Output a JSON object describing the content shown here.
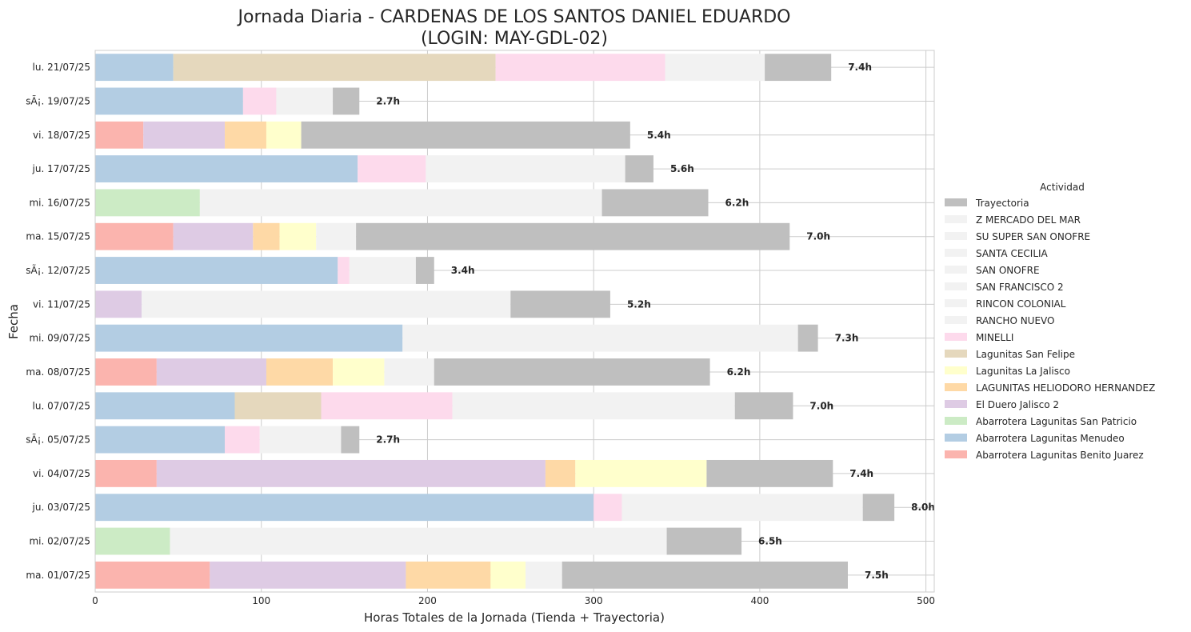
{
  "chart_data": {
    "type": "bar",
    "orientation": "horizontal",
    "stacked": true,
    "title_line1": "Jornada Diaria - CARDENAS DE LOS SANTOS DANIEL EDUARDO",
    "title_line2": "(LOGIN: MAY-GDL-02)",
    "xlabel": "Horas Totales de la Jornada (Tienda + Trayectoria)",
    "ylabel": "Fecha",
    "xlim": [
      0,
      505
    ],
    "xticks": [
      0,
      100,
      200,
      300,
      400,
      500
    ],
    "grid": true,
    "legend_title": "Actividad",
    "legend_placement": "center-right",
    "legend": [
      {
        "name": "Trayectoria",
        "color": "#bfbfbf"
      },
      {
        "name": "Z MERCADO DEL MAR",
        "color": "#f2f2f2"
      },
      {
        "name": "SU SUPER SAN ONOFRE",
        "color": "#f2f2f2"
      },
      {
        "name": "SANTA CECILIA",
        "color": "#f2f2f2"
      },
      {
        "name": "SAN ONOFRE",
        "color": "#f2f2f2"
      },
      {
        "name": "SAN FRANCISCO 2",
        "color": "#f2f2f2"
      },
      {
        "name": "RINCON COLONIAL",
        "color": "#f2f2f2"
      },
      {
        "name": "RANCHO NUEVO",
        "color": "#f2f2f2"
      },
      {
        "name": "MINELLI",
        "color": "#fddaec"
      },
      {
        "name": "Lagunitas San Felipe",
        "color": "#e5d8bd"
      },
      {
        "name": "Lagunitas La Jalisco",
        "color": "#ffffcc"
      },
      {
        "name": "LAGUNITAS HELIODORO HERNANDEZ",
        "color": "#fed9a6"
      },
      {
        "name": "El Duero Jalisco 2",
        "color": "#decbe4"
      },
      {
        "name": "Abarrotera Lagunitas San Patricio",
        "color": "#ccebc5"
      },
      {
        "name": "Abarrotera Lagunitas Menudeo",
        "color": "#b3cde3"
      },
      {
        "name": "Abarrotera Lagunitas Benito Juarez",
        "color": "#fbb4ae"
      }
    ],
    "rows": [
      {
        "label": "lu. 21/07/25",
        "total": "7.4h",
        "segments": [
          {
            "s": "Abarrotera Lagunitas Menudeo",
            "v": 47
          },
          {
            "s": "Lagunitas San Felipe",
            "v": 194
          },
          {
            "s": "MINELLI",
            "v": 102
          },
          {
            "s": "RANCHO NUEVO",
            "v": 60
          },
          {
            "s": "Trayectoria",
            "v": 40
          }
        ]
      },
      {
        "label": "sÃ¡. 19/07/25",
        "total": "2.7h",
        "segments": [
          {
            "s": "Abarrotera Lagunitas Menudeo",
            "v": 89
          },
          {
            "s": "MINELLI",
            "v": 20
          },
          {
            "s": "SAN ONOFRE",
            "v": 34
          },
          {
            "s": "Trayectoria",
            "v": 16
          }
        ]
      },
      {
        "label": "vi. 18/07/25",
        "total": "5.4h",
        "segments": [
          {
            "s": "Abarrotera Lagunitas Benito Juarez",
            "v": 29
          },
          {
            "s": "El Duero Jalisco 2",
            "v": 49
          },
          {
            "s": "LAGUNITAS HELIODORO HERNANDEZ",
            "v": 25
          },
          {
            "s": "Lagunitas La Jalisco",
            "v": 21
          },
          {
            "s": "Trayectoria",
            "v": 198
          }
        ]
      },
      {
        "label": "ju. 17/07/25",
        "total": "5.6h",
        "segments": [
          {
            "s": "Abarrotera Lagunitas Menudeo",
            "v": 158
          },
          {
            "s": "MINELLI",
            "v": 41
          },
          {
            "s": "SANTA CECILIA",
            "v": 120
          },
          {
            "s": "Trayectoria",
            "v": 17
          }
        ]
      },
      {
        "label": "mi. 16/07/25",
        "total": "6.2h",
        "segments": [
          {
            "s": "Abarrotera Lagunitas San Patricio",
            "v": 63
          },
          {
            "s": "RINCON COLONIAL",
            "v": 242
          },
          {
            "s": "Trayectoria",
            "v": 64
          }
        ]
      },
      {
        "label": "ma. 15/07/25",
        "total": "7.0h",
        "segments": [
          {
            "s": "Abarrotera Lagunitas Benito Juarez",
            "v": 47
          },
          {
            "s": "El Duero Jalisco 2",
            "v": 48
          },
          {
            "s": "LAGUNITAS HELIODORO HERNANDEZ",
            "v": 16
          },
          {
            "s": "Lagunitas La Jalisco",
            "v": 22
          },
          {
            "s": "SAN FRANCISCO 2",
            "v": 24
          },
          {
            "s": "Trayectoria",
            "v": 261
          }
        ]
      },
      {
        "label": "sÃ¡. 12/07/25",
        "total": "3.4h",
        "segments": [
          {
            "s": "Abarrotera Lagunitas Menudeo",
            "v": 146
          },
          {
            "s": "MINELLI",
            "v": 7
          },
          {
            "s": "SAN ONOFRE",
            "v": 40
          },
          {
            "s": "Trayectoria",
            "v": 11
          }
        ]
      },
      {
        "label": "vi. 11/07/25",
        "total": "5.2h",
        "segments": [
          {
            "s": "El Duero Jalisco 2",
            "v": 28
          },
          {
            "s": "Z MERCADO DEL MAR",
            "v": 222
          },
          {
            "s": "Trayectoria",
            "v": 60
          }
        ]
      },
      {
        "label": "mi. 09/07/25",
        "total": "7.3h",
        "segments": [
          {
            "s": "Abarrotera Lagunitas Menudeo",
            "v": 185
          },
          {
            "s": "SU SUPER SAN ONOFRE",
            "v": 238
          },
          {
            "s": "Trayectoria",
            "v": 12
          }
        ]
      },
      {
        "label": "ma. 08/07/25",
        "total": "6.2h",
        "segments": [
          {
            "s": "Abarrotera Lagunitas Benito Juarez",
            "v": 37
          },
          {
            "s": "El Duero Jalisco 2",
            "v": 66
          },
          {
            "s": "LAGUNITAS HELIODORO HERNANDEZ",
            "v": 40
          },
          {
            "s": "Lagunitas La Jalisco",
            "v": 31
          },
          {
            "s": "SAN FRANCISCO 2",
            "v": 30
          },
          {
            "s": "Trayectoria",
            "v": 166
          }
        ]
      },
      {
        "label": "lu. 07/07/25",
        "total": "7.0h",
        "segments": [
          {
            "s": "Abarrotera Lagunitas Menudeo",
            "v": 84
          },
          {
            "s": "Lagunitas San Felipe",
            "v": 52
          },
          {
            "s": "MINELLI",
            "v": 79
          },
          {
            "s": "RANCHO NUEVO",
            "v": 170
          },
          {
            "s": "Trayectoria",
            "v": 35
          }
        ]
      },
      {
        "label": "sÃ¡. 05/07/25",
        "total": "2.7h",
        "segments": [
          {
            "s": "Abarrotera Lagunitas Menudeo",
            "v": 78
          },
          {
            "s": "MINELLI",
            "v": 21
          },
          {
            "s": "SAN ONOFRE",
            "v": 49
          },
          {
            "s": "Trayectoria",
            "v": 11
          }
        ]
      },
      {
        "label": "vi. 04/07/25",
        "total": "7.4h",
        "segments": [
          {
            "s": "Abarrotera Lagunitas Benito Juarez",
            "v": 37
          },
          {
            "s": "El Duero Jalisco 2",
            "v": 234
          },
          {
            "s": "LAGUNITAS HELIODORO HERNANDEZ",
            "v": 18
          },
          {
            "s": "Lagunitas La Jalisco",
            "v": 79
          },
          {
            "s": "Trayectoria",
            "v": 76
          }
        ]
      },
      {
        "label": "ju. 03/07/25",
        "total": "8.0h",
        "segments": [
          {
            "s": "Abarrotera Lagunitas Menudeo",
            "v": 300
          },
          {
            "s": "MINELLI",
            "v": 17
          },
          {
            "s": "SANTA CECILIA",
            "v": 145
          },
          {
            "s": "Trayectoria",
            "v": 19
          }
        ]
      },
      {
        "label": "mi. 02/07/25",
        "total": "6.5h",
        "segments": [
          {
            "s": "Abarrotera Lagunitas San Patricio",
            "v": 45
          },
          {
            "s": "RINCON COLONIAL",
            "v": 299
          },
          {
            "s": "Trayectoria",
            "v": 45
          }
        ]
      },
      {
        "label": "ma. 01/07/25",
        "total": "7.5h",
        "segments": [
          {
            "s": "Abarrotera Lagunitas Benito Juarez",
            "v": 69
          },
          {
            "s": "El Duero Jalisco 2",
            "v": 118
          },
          {
            "s": "LAGUNITAS HELIODORO HERNANDEZ",
            "v": 51
          },
          {
            "s": "Lagunitas La Jalisco",
            "v": 21
          },
          {
            "s": "SAN FRANCISCO 2",
            "v": 22
          },
          {
            "s": "Trayectoria",
            "v": 172
          }
        ]
      }
    ]
  }
}
